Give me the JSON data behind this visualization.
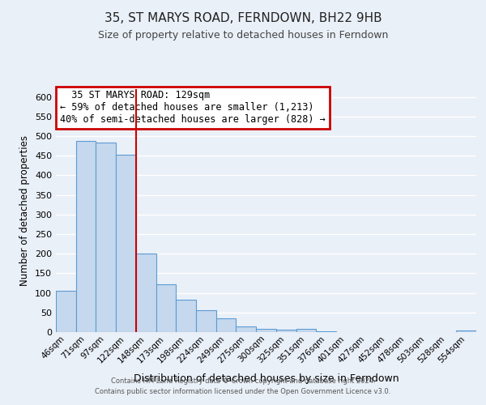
{
  "title": "35, ST MARYS ROAD, FERNDOWN, BH22 9HB",
  "subtitle": "Size of property relative to detached houses in Ferndown",
  "xlabel": "Distribution of detached houses by size in Ferndown",
  "ylabel": "Number of detached properties",
  "footer_line1": "Contains HM Land Registry data © Crown copyright and database right 2024.",
  "footer_line2": "Contains public sector information licensed under the Open Government Licence v3.0.",
  "bin_labels": [
    "46sqm",
    "71sqm",
    "97sqm",
    "122sqm",
    "148sqm",
    "173sqm",
    "198sqm",
    "224sqm",
    "249sqm",
    "275sqm",
    "300sqm",
    "325sqm",
    "351sqm",
    "376sqm",
    "401sqm",
    "427sqm",
    "452sqm",
    "478sqm",
    "503sqm",
    "528sqm",
    "554sqm"
  ],
  "bar_heights": [
    105,
    488,
    483,
    453,
    201,
    122,
    83,
    55,
    36,
    15,
    9,
    6,
    8,
    3,
    1,
    1,
    0,
    0,
    0,
    0,
    5
  ],
  "bar_color": "#c5d8ed",
  "bar_edge_color": "#5b9bd5",
  "background_color": "#eaf0f8",
  "grid_color": "#ffffff",
  "red_line_bin_index": 3,
  "annotation_title": "35 ST MARYS ROAD: 129sqm",
  "annotation_line1": "← 59% of detached houses are smaller (1,213)",
  "annotation_line2": "40% of semi-detached houses are larger (828) →",
  "annotation_box_color": "#ffffff",
  "annotation_border_color": "#cc0000",
  "red_line_color": "#cc0000",
  "ylim": [
    0,
    620
  ],
  "yticks": [
    0,
    50,
    100,
    150,
    200,
    250,
    300,
    350,
    400,
    450,
    500,
    550,
    600
  ]
}
